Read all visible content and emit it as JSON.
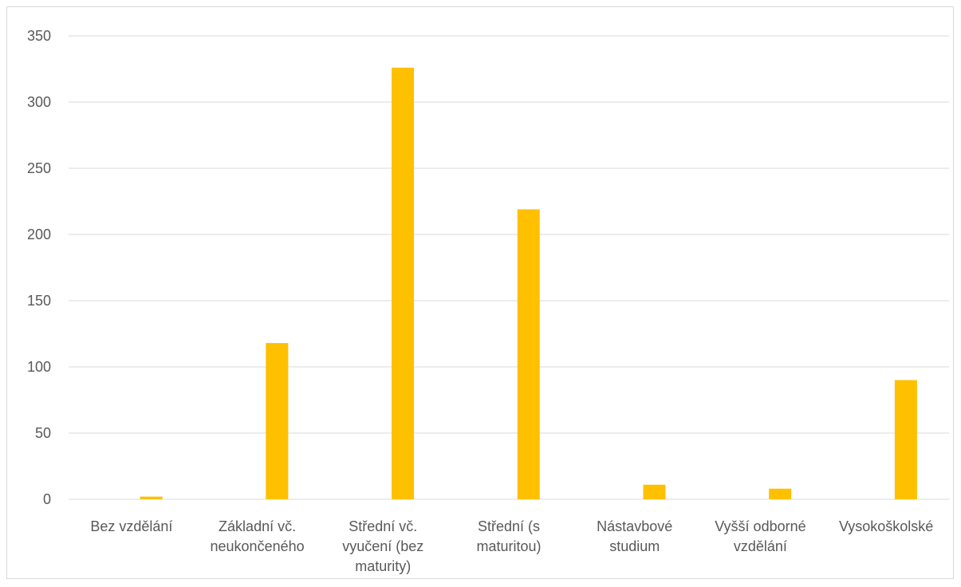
{
  "chart_data": {
    "type": "bar",
    "title": "",
    "xlabel": "",
    "ylabel": "",
    "categories": [
      "Bez vzdělání",
      "Základní vč. neukončeného",
      "Střední vč. vyučení (bez maturity)",
      "Střední (s maturitou)",
      "Nástavbové studium",
      "Vyšší odborné vzdělání",
      "Vysokoškolské"
    ],
    "category_lines": [
      [
        "Bez vzdělání"
      ],
      [
        "Základní vč.",
        "neukončeného"
      ],
      [
        "Střední vč.",
        "vyučení (bez",
        "maturity)"
      ],
      [
        "Střední (s",
        "maturitou)"
      ],
      [
        "Nástavbové",
        "studium"
      ],
      [
        "Vyšší odborné",
        "vzdělání"
      ],
      [
        "Vysokoškolské"
      ]
    ],
    "values": [
      2,
      118,
      326,
      219,
      11,
      8,
      90
    ],
    "ylim": [
      0,
      350
    ],
    "yticks": [
      0,
      50,
      100,
      150,
      200,
      250,
      300,
      350
    ],
    "grid": true,
    "legend": "none",
    "colors": {
      "bar": "#FFC000",
      "grid": "#d9d9d9",
      "text": "#595959"
    }
  }
}
